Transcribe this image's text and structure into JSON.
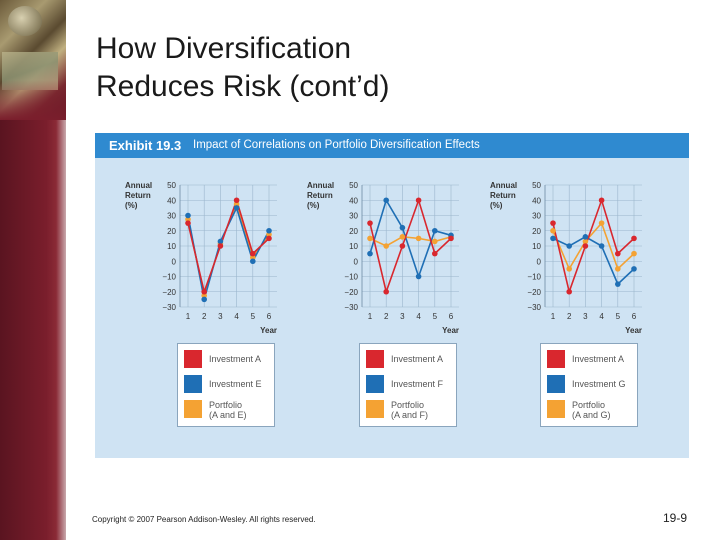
{
  "slide": {
    "title": "How Diversification\nReduces Risk (cont’d)",
    "footer": "Copyright © 2007 Pearson Addison-Wesley. All rights reserved.",
    "page_number": "19-9"
  },
  "exhibit": {
    "number": "Exhibit 19.3",
    "title": "Impact of Correlations on Portfolio Diversification Effects"
  },
  "colors": {
    "investment_a": "#d9272e",
    "investment_other": "#1f6fb5",
    "portfolio": "#f4a233",
    "header": "#2f8ad0",
    "panel": "#cfe3f3"
  },
  "chart_data": [
    {
      "type": "line",
      "ylabel": "Annual Return (%)",
      "xlabel": "Year",
      "x": [
        1,
        2,
        3,
        4,
        5,
        6
      ],
      "ylim": [
        -30,
        50
      ],
      "yticks": [
        "50",
        "40",
        "30",
        "20",
        "10",
        "0",
        "−10",
        "−20",
        "−30"
      ],
      "series": [
        {
          "name": "Investment A",
          "color": "#d9272e",
          "values": [
            25,
            -20,
            10,
            40,
            5,
            15
          ]
        },
        {
          "name": "Investment E",
          "color": "#1f6fb5",
          "values": [
            30,
            -25,
            13,
            35,
            0,
            20
          ]
        },
        {
          "name": "Portfolio (A and E)",
          "color": "#f4a233",
          "values": [
            27.5,
            -22.5,
            11.5,
            37.5,
            2.5,
            17.5
          ]
        }
      ],
      "legend": [
        "Investment A",
        "Investment E",
        "Portfolio\n(A and E)"
      ]
    },
    {
      "type": "line",
      "ylabel": "Annual Return (%)",
      "xlabel": "Year",
      "x": [
        1,
        2,
        3,
        4,
        5,
        6
      ],
      "ylim": [
        -30,
        50
      ],
      "yticks": [
        "50",
        "40",
        "30",
        "20",
        "10",
        "0",
        "−10",
        "−20",
        "−30"
      ],
      "series": [
        {
          "name": "Investment A",
          "color": "#d9272e",
          "values": [
            25,
            -20,
            10,
            40,
            5,
            15
          ]
        },
        {
          "name": "Investment F",
          "color": "#1f6fb5",
          "values": [
            5,
            40,
            22,
            -10,
            20,
            17
          ]
        },
        {
          "name": "Portfolio (A and F)",
          "color": "#f4a233",
          "values": [
            15,
            10,
            16,
            15,
            13,
            16
          ]
        }
      ],
      "legend": [
        "Investment A",
        "Investment F",
        "Portfolio\n(A and F)"
      ]
    },
    {
      "type": "line",
      "ylabel": "Annual Return (%)",
      "xlabel": "Year",
      "x": [
        1,
        2,
        3,
        4,
        5,
        6
      ],
      "ylim": [
        -30,
        50
      ],
      "yticks": [
        "50",
        "40",
        "30",
        "20",
        "10",
        "0",
        "−10",
        "−20",
        "−30"
      ],
      "series": [
        {
          "name": "Investment A",
          "color": "#d9272e",
          "values": [
            25,
            -20,
            10,
            40,
            5,
            15
          ]
        },
        {
          "name": "Investment G",
          "color": "#1f6fb5",
          "values": [
            15,
            10,
            16,
            10,
            -15,
            -5
          ]
        },
        {
          "name": "Portfolio (A and G)",
          "color": "#f4a233",
          "values": [
            20,
            -5,
            13,
            25,
            -5,
            5
          ]
        }
      ],
      "legend": [
        "Investment A",
        "Investment G",
        "Portfolio\n(A and G)"
      ]
    }
  ]
}
